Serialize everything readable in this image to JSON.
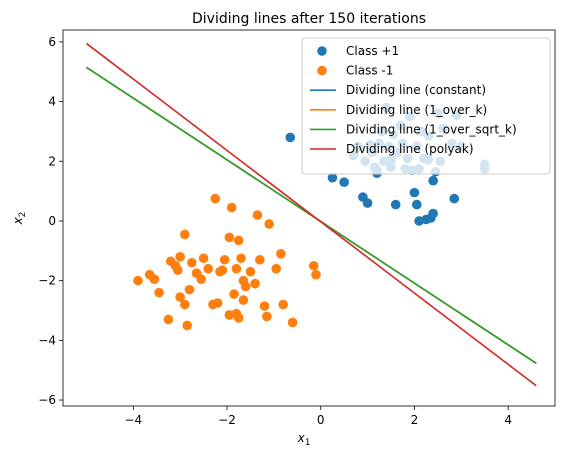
{
  "chart_data": {
    "type": "scatter",
    "title": "Dividing lines after 150 iterations",
    "xlabel": "x",
    "xlabel_sub": "1",
    "ylabel": "x",
    "ylabel_sub": "2",
    "xlim": [
      -5.5,
      5.0
    ],
    "ylim": [
      -6.2,
      6.4
    ],
    "xticks": [
      -4,
      -2,
      0,
      2,
      4
    ],
    "yticks": [
      -6,
      -4,
      -2,
      0,
      2,
      4,
      6
    ],
    "grid": false,
    "legend_position": "top-right",
    "scatter_series": [
      {
        "name": "Class +1",
        "color": "#1f77b4",
        "points": [
          [
            -0.65,
            2.8
          ],
          [
            0.25,
            1.45
          ],
          [
            0.5,
            1.3
          ],
          [
            0.7,
            2.2
          ],
          [
            0.8,
            2.5
          ],
          [
            0.95,
            2.0
          ],
          [
            1.0,
            0.6
          ],
          [
            0.9,
            0.8
          ],
          [
            1.1,
            2.3
          ],
          [
            1.15,
            1.8
          ],
          [
            1.2,
            1.7
          ],
          [
            1.25,
            2.6
          ],
          [
            1.3,
            3.0
          ],
          [
            1.35,
            2.0
          ],
          [
            1.4,
            3.8
          ],
          [
            1.45,
            2.5
          ],
          [
            1.5,
            1.8
          ],
          [
            1.55,
            2.9
          ],
          [
            1.6,
            0.55
          ],
          [
            1.65,
            2.3
          ],
          [
            1.7,
            3.2
          ],
          [
            1.75,
            2.6
          ],
          [
            1.8,
            1.75
          ],
          [
            1.85,
            2.1
          ],
          [
            1.9,
            3.5
          ],
          [
            1.95,
            1.7
          ],
          [
            2.0,
            0.95
          ],
          [
            2.05,
            0.55
          ],
          [
            2.05,
            2.5
          ],
          [
            2.1,
            1.75
          ],
          [
            2.1,
            0.0
          ],
          [
            2.15,
            3.0
          ],
          [
            2.2,
            2.1
          ],
          [
            2.25,
            0.05
          ],
          [
            2.3,
            2.85
          ],
          [
            2.35,
            0.1
          ],
          [
            2.4,
            0.25
          ],
          [
            2.4,
            1.35
          ],
          [
            2.45,
            1.65
          ],
          [
            2.5,
            3.6
          ],
          [
            2.55,
            2.0
          ],
          [
            2.6,
            3.1
          ],
          [
            2.8,
            2.6
          ],
          [
            2.85,
            0.75
          ],
          [
            2.9,
            3.55
          ],
          [
            3.0,
            2.5
          ],
          [
            3.5,
            1.9
          ],
          [
            3.5,
            1.75
          ],
          [
            1.5,
            2.05
          ],
          [
            1.2,
            1.6
          ],
          [
            2.3,
            2.05
          ],
          [
            1.05,
            2.55
          ]
        ]
      },
      {
        "name": "Class -1",
        "color": "#ff7f0e",
        "points": [
          [
            -3.9,
            -2.0
          ],
          [
            -3.65,
            -1.8
          ],
          [
            -3.55,
            -1.95
          ],
          [
            -3.45,
            -2.4
          ],
          [
            -3.25,
            -3.3
          ],
          [
            -3.2,
            -1.35
          ],
          [
            -3.1,
            -1.5
          ],
          [
            -3.05,
            -1.65
          ],
          [
            -3.0,
            -1.2
          ],
          [
            -3.0,
            -2.55
          ],
          [
            -2.9,
            -0.45
          ],
          [
            -2.9,
            -2.8
          ],
          [
            -2.85,
            -3.5
          ],
          [
            -2.8,
            -2.3
          ],
          [
            -2.75,
            -1.4
          ],
          [
            -2.65,
            -1.75
          ],
          [
            -2.5,
            -1.25
          ],
          [
            -2.4,
            -1.6
          ],
          [
            -2.3,
            -2.8
          ],
          [
            -2.25,
            0.75
          ],
          [
            -2.2,
            -2.75
          ],
          [
            -2.15,
            -1.7
          ],
          [
            -2.1,
            -1.65
          ],
          [
            -2.05,
            -1.3
          ],
          [
            -1.95,
            -3.15
          ],
          [
            -1.95,
            -0.55
          ],
          [
            -1.9,
            0.45
          ],
          [
            -1.85,
            -2.45
          ],
          [
            -1.8,
            -3.1
          ],
          [
            -1.8,
            -1.6
          ],
          [
            -1.75,
            -3.25
          ],
          [
            -1.75,
            -0.65
          ],
          [
            -1.7,
            -1.25
          ],
          [
            -1.65,
            -2.65
          ],
          [
            -1.6,
            -2.2
          ],
          [
            -1.5,
            -1.7
          ],
          [
            -1.4,
            -2.1
          ],
          [
            -1.35,
            0.2
          ],
          [
            -1.3,
            -1.3
          ],
          [
            -1.2,
            -2.85
          ],
          [
            -1.15,
            -3.2
          ],
          [
            -1.1,
            -0.1
          ],
          [
            -0.95,
            -1.6
          ],
          [
            -0.85,
            -1.1
          ],
          [
            -0.8,
            -2.8
          ],
          [
            -0.6,
            -3.4
          ],
          [
            -0.15,
            -1.5
          ],
          [
            -0.1,
            -1.8
          ],
          [
            -1.65,
            -2.0
          ],
          [
            -2.55,
            -1.95
          ]
        ]
      }
    ],
    "line_series": [
      {
        "name": "Dividing line (constant)",
        "color": "#1f77b4",
        "x": [
          -5.0,
          4.6
        ],
        "y": [
          5.15,
          -4.77
        ]
      },
      {
        "name": "Dividing line (1_over_k)",
        "color": "#ff7f0e",
        "x": [
          -5.0,
          4.6
        ],
        "y": [
          5.15,
          -4.77
        ]
      },
      {
        "name": "Dividing line (1_over_sqrt_k)",
        "color": "#2ca02c",
        "x": [
          -5.0,
          4.6
        ],
        "y": [
          5.15,
          -4.77
        ]
      },
      {
        "name": "Dividing line (polyak)",
        "color": "#d62728",
        "x": [
          -5.0,
          4.6
        ],
        "y": [
          5.95,
          -5.52
        ]
      }
    ]
  }
}
